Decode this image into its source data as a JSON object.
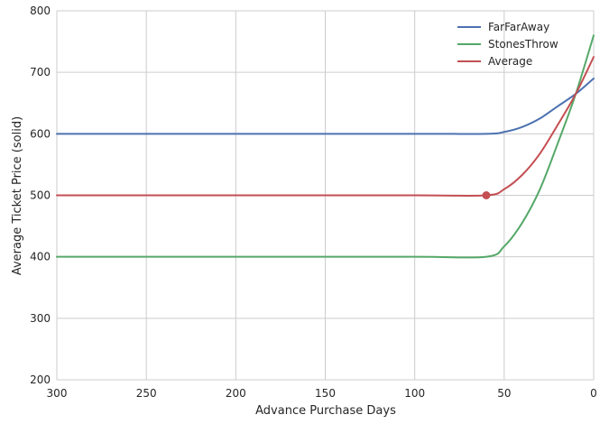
{
  "chart_data": {
    "type": "line",
    "xlabel": "Advance Purchase Days",
    "ylabel": "Average Ticket Price (solid)",
    "xlim": [
      300,
      0
    ],
    "ylim": [
      200,
      800
    ],
    "x_reversed": true,
    "xticks": [
      300,
      250,
      200,
      150,
      100,
      50,
      0
    ],
    "yticks": [
      200,
      300,
      400,
      500,
      600,
      700,
      800
    ],
    "grid": true,
    "legend_position": "top-right",
    "series": [
      {
        "name": "FarFarAway",
        "color": "#4c72b0",
        "x": [
          300,
          200,
          100,
          60,
          50,
          40,
          30,
          20,
          10,
          0
        ],
        "y": [
          600,
          600,
          600,
          600,
          603,
          611,
          625,
          645,
          665,
          690
        ]
      },
      {
        "name": "StonesThrow",
        "color": "#55a868",
        "x": [
          300,
          200,
          100,
          60,
          50,
          40,
          30,
          20,
          10,
          0
        ],
        "y": [
          400,
          400,
          400,
          400,
          417,
          455,
          510,
          585,
          665,
          760
        ]
      },
      {
        "name": "Average",
        "color": "#c44e52",
        "x": [
          300,
          200,
          100,
          60,
          50,
          40,
          30,
          20,
          10,
          0
        ],
        "y": [
          500,
          500,
          500,
          500,
          510,
          533,
          568,
          615,
          665,
          725
        ]
      }
    ],
    "markers": [
      {
        "series": "Average",
        "x": 60,
        "y": 500,
        "color": "#c44e52"
      }
    ]
  }
}
